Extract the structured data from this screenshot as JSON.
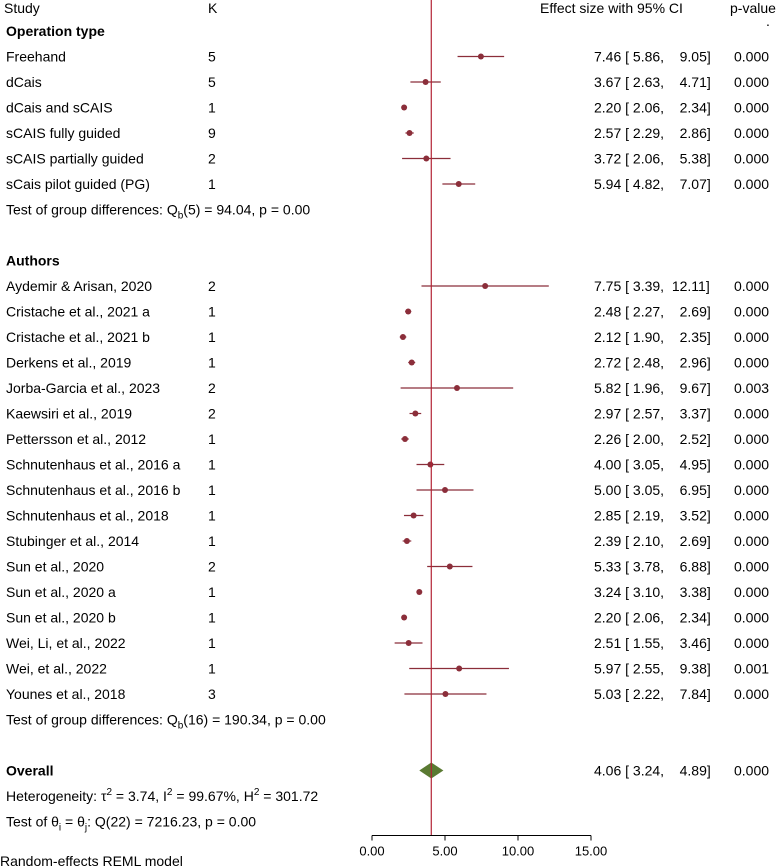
{
  "chart_data": {
    "type": "forest",
    "headers": {
      "study": "Study",
      "k": "K",
      "effect": "Effect size  with 95% CI",
      "pvalue": "p-value"
    },
    "corner_mark": ".",
    "xlim": [
      0,
      15
    ],
    "x_ticks": [
      "0.00",
      "5.00",
      "10.00",
      "15.00"
    ],
    "x_tick_values": [
      0,
      5,
      10,
      15
    ],
    "overall_line_value": 4.06,
    "colors": {
      "point": "#8b2e3a",
      "ci": "#8b2e3a",
      "overall_line": "#b22234",
      "diamond": "#5a7a32",
      "axis": "#000000"
    },
    "groups": [
      {
        "title": "Operation type",
        "rows": [
          {
            "study": "Freehand",
            "k": "5",
            "es": 7.46,
            "lo": 5.86,
            "hi": 9.05,
            "ci_text": "7.46 [ 5.86,    9.05]",
            "p": "0.000"
          },
          {
            "study": "dCais",
            "k": "5",
            "es": 3.67,
            "lo": 2.63,
            "hi": 4.71,
            "ci_text": "3.67 [ 2.63,    4.71]",
            "p": "0.000"
          },
          {
            "study": "dCais and sCAIS",
            "k": "1",
            "es": 2.2,
            "lo": 2.06,
            "hi": 2.34,
            "ci_text": "2.20 [ 2.06,    2.34]",
            "p": "0.000"
          },
          {
            "study": "sCAIS fully guided",
            "k": "9",
            "es": 2.57,
            "lo": 2.29,
            "hi": 2.86,
            "ci_text": "2.57 [ 2.29,    2.86]",
            "p": "0.000"
          },
          {
            "study": "sCAIS partially guided",
            "k": "2",
            "es": 3.72,
            "lo": 2.06,
            "hi": 5.38,
            "ci_text": "3.72 [ 2.06,    5.38]",
            "p": "0.000"
          },
          {
            "study": "sCais pilot guided (PG)",
            "k": "1",
            "es": 5.94,
            "lo": 4.82,
            "hi": 7.07,
            "ci_text": "5.94 [ 4.82,    7.07]",
            "p": "0.000"
          }
        ],
        "test_prefix": "Test of group differences: Q",
        "test_sub": "b",
        "test_suffix": "(5) = 94.04, p = 0.00"
      },
      {
        "title": "Authors",
        "rows": [
          {
            "study": "Aydemir & Arisan, 2020",
            "k": "2",
            "es": 7.75,
            "lo": 3.39,
            "hi": 12.11,
            "ci_text": "7.75 [ 3.39,  12.11]",
            "p": "0.000"
          },
          {
            "study": "Cristache et al., 2021 a",
            "k": "1",
            "es": 2.48,
            "lo": 2.27,
            "hi": 2.69,
            "ci_text": "2.48 [ 2.27,    2.69]",
            "p": "0.000"
          },
          {
            "study": "Cristache et al., 2021 b",
            "k": "1",
            "es": 2.12,
            "lo": 1.9,
            "hi": 2.35,
            "ci_text": "2.12 [ 1.90,    2.35]",
            "p": "0.000"
          },
          {
            "study": "Derkens et al., 2019",
            "k": "1",
            "es": 2.72,
            "lo": 2.48,
            "hi": 2.96,
            "ci_text": "2.72 [ 2.48,    2.96]",
            "p": "0.000"
          },
          {
            "study": "Jorba-Garcia et al., 2023",
            "k": "2",
            "es": 5.82,
            "lo": 1.96,
            "hi": 9.67,
            "ci_text": "5.82 [ 1.96,    9.67]",
            "p": "0.003"
          },
          {
            "study": "Kaewsiri et al., 2019",
            "k": "2",
            "es": 2.97,
            "lo": 2.57,
            "hi": 3.37,
            "ci_text": "2.97 [ 2.57,    3.37]",
            "p": "0.000"
          },
          {
            "study": "Pettersson et al., 2012",
            "k": "1",
            "es": 2.26,
            "lo": 2.0,
            "hi": 2.52,
            "ci_text": "2.26 [ 2.00,    2.52]",
            "p": "0.000"
          },
          {
            "study": "Schnutenhaus et al., 2016 a",
            "k": "1",
            "es": 4.0,
            "lo": 3.05,
            "hi": 4.95,
            "ci_text": "4.00 [ 3.05,    4.95]",
            "p": "0.000"
          },
          {
            "study": "Schnutenhaus et al., 2016 b",
            "k": "1",
            "es": 5.0,
            "lo": 3.05,
            "hi": 6.95,
            "ci_text": "5.00 [ 3.05,    6.95]",
            "p": "0.000"
          },
          {
            "study": "Schnutenhaus et al., 2018",
            "k": "1",
            "es": 2.85,
            "lo": 2.19,
            "hi": 3.52,
            "ci_text": "2.85 [ 2.19,    3.52]",
            "p": "0.000"
          },
          {
            "study": "Stubinger et al., 2014",
            "k": "1",
            "es": 2.39,
            "lo": 2.1,
            "hi": 2.69,
            "ci_text": "2.39 [ 2.10,    2.69]",
            "p": "0.000"
          },
          {
            "study": "Sun et al., 2020",
            "k": "2",
            "es": 5.33,
            "lo": 3.78,
            "hi": 6.88,
            "ci_text": "5.33 [ 3.78,    6.88]",
            "p": "0.000"
          },
          {
            "study": "Sun et al., 2020 a",
            "k": "1",
            "es": 3.24,
            "lo": 3.1,
            "hi": 3.38,
            "ci_text": "3.24 [ 3.10,    3.38]",
            "p": "0.000"
          },
          {
            "study": "Sun et al., 2020 b",
            "k": "1",
            "es": 2.2,
            "lo": 2.06,
            "hi": 2.34,
            "ci_text": "2.20 [ 2.06,    2.34]",
            "p": "0.000"
          },
          {
            "study": "Wei, Li, et al., 2022",
            "k": "1",
            "es": 2.51,
            "lo": 1.55,
            "hi": 3.46,
            "ci_text": "2.51 [ 1.55,    3.46]",
            "p": "0.000"
          },
          {
            "study": "Wei, et al., 2022",
            "k": "1",
            "es": 5.97,
            "lo": 2.55,
            "hi": 9.38,
            "ci_text": "5.97 [ 2.55,    9.38]",
            "p": "0.001"
          },
          {
            "study": "Younes et al., 2018",
            "k": "3",
            "es": 5.03,
            "lo": 2.22,
            "hi": 7.84,
            "ci_text": "5.03 [ 2.22,    7.84]",
            "p": "0.000"
          }
        ],
        "test_prefix": "Test of group differences: Q",
        "test_sub": "b",
        "test_suffix": "(16) = 190.34, p = 0.00"
      }
    ],
    "overall": {
      "label": "Overall",
      "es": 4.06,
      "lo": 3.24,
      "hi": 4.89,
      "ci_text": "4.06 [ 3.24,    4.89]",
      "p": "0.000",
      "heterogeneity_prefix": "Heterogeneity: τ",
      "heterogeneity_tau_sup": "2",
      "heterogeneity_mid": " = 3.74, I",
      "heterogeneity_i_sup": "2",
      "heterogeneity_mid2": " = 99.67%, H",
      "heterogeneity_h_sup": "2",
      "heterogeneity_suffix": " = 301.72",
      "test_prefix": "Test of θ",
      "test_sub1": "i",
      "test_mid": " = θ",
      "test_sub2": "j",
      "test_suffix": ": Q(22) = 7216.23, p = 0.00"
    },
    "footer": "Random-effects REML model"
  }
}
